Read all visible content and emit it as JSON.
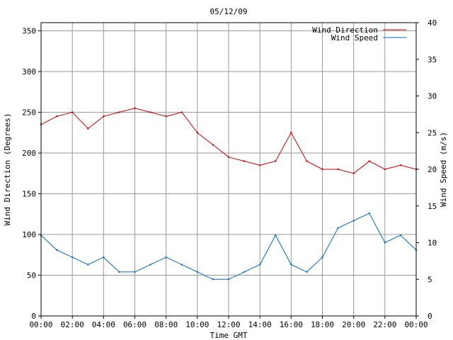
{
  "chart_data": {
    "type": "line",
    "title": "05/12/09",
    "xlabel": "Time GMT",
    "ylabel_left": "Wind Direction (Degrees)",
    "ylabel_right": "Wind Speed (m/s)",
    "x_ticks": [
      "00:00",
      "02:00",
      "04:00",
      "06:00",
      "08:00",
      "10:00",
      "12:00",
      "14:00",
      "16:00",
      "18:00",
      "20:00",
      "22:00",
      "00:00"
    ],
    "ylim_left": [
      0,
      360
    ],
    "y_ticks_left": [
      0,
      50,
      100,
      150,
      200,
      250,
      300,
      350
    ],
    "ylim_right": [
      0,
      40
    ],
    "y_ticks_right": [
      0,
      5,
      10,
      15,
      20,
      25,
      30,
      35,
      40
    ],
    "grid": true,
    "legend_position": "top-right",
    "series": [
      {
        "name": "Wind Direction",
        "axis": "left",
        "color": "#cc0000",
        "x_hours": [
          0,
          1,
          2,
          3,
          4,
          5,
          6,
          7,
          8,
          9,
          10,
          11,
          12,
          13,
          14,
          15,
          16,
          17,
          18,
          19,
          20,
          21,
          22,
          23,
          24
        ],
        "values": [
          235,
          245,
          250,
          230,
          245,
          250,
          255,
          250,
          245,
          250,
          225,
          210,
          195,
          190,
          185,
          190,
          225,
          190,
          180,
          180,
          175,
          190,
          180,
          185,
          180
        ]
      },
      {
        "name": "Wind Speed",
        "axis": "right",
        "color": "#0066cc",
        "x_hours": [
          0,
          1,
          2,
          3,
          4,
          5,
          6,
          7,
          8,
          9,
          10,
          11,
          12,
          13,
          14,
          15,
          16,
          17,
          18,
          19,
          20,
          21,
          22,
          23,
          24
        ],
        "values": [
          11,
          9,
          8,
          7,
          8,
          6,
          6,
          7,
          8,
          7,
          6,
          5,
          5,
          6,
          7,
          11,
          7,
          6,
          8,
          12,
          13,
          14,
          10,
          11,
          9
        ]
      }
    ]
  }
}
